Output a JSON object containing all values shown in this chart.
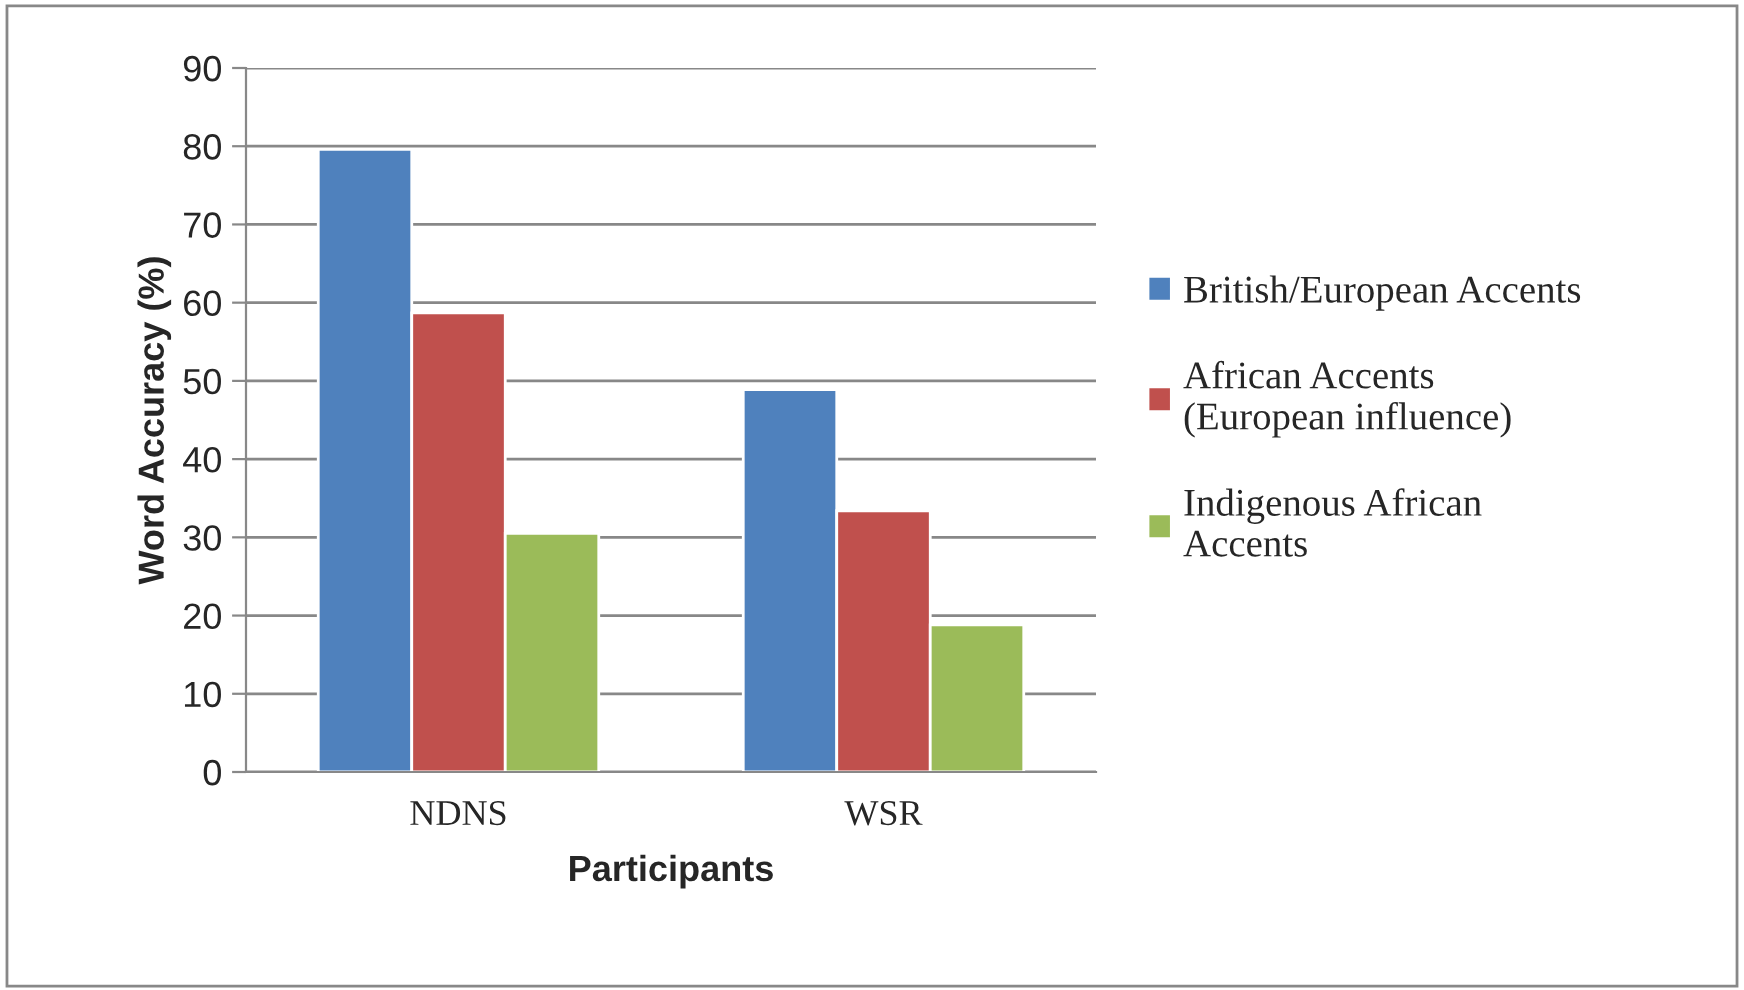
{
  "chart_data": {
    "type": "bar",
    "xlabel": "Participants",
    "ylabel": "Word Accuracy (%)",
    "categories": [
      "NDNS",
      "WSR"
    ],
    "series": [
      {
        "name": "British/European Accents",
        "color": "#4f81bd",
        "values": [
          79.6,
          48.9
        ]
      },
      {
        "name": "African Accents\n(European influence)",
        "color": "#c0504d",
        "values": [
          58.7,
          33.4
        ]
      },
      {
        "name": "Indigenous African\nAccents",
        "color": "#9bbb59",
        "values": [
          30.5,
          18.8
        ]
      }
    ],
    "ylim": [
      0,
      90
    ],
    "yticks": [
      0,
      10,
      20,
      30,
      40,
      50,
      60,
      70,
      80,
      90
    ],
    "grid": "y",
    "legend": "right"
  }
}
